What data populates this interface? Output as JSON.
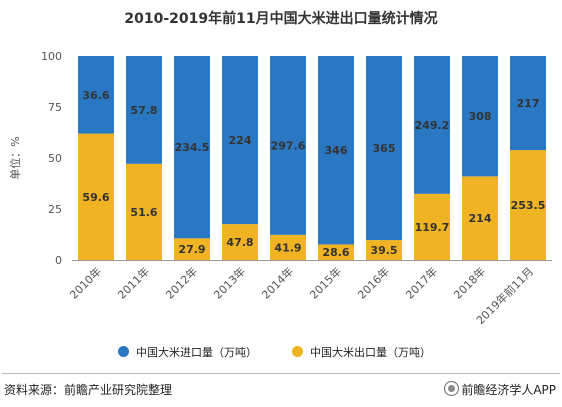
{
  "colors": {
    "import": "#2a78c3",
    "export": "#f0b323",
    "axis": "#555555",
    "label": "#333333"
  },
  "footer": {
    "source": "资料来源：前瞻产业研究院整理",
    "brand": "前瞻经济学人APP",
    "brand_icon": "circle-logo-icon"
  },
  "chart_data": {
    "type": "bar",
    "stacked": true,
    "normalized": true,
    "title": "2010-2019年前11月中国大米进出口量统计情况",
    "ylabel": "单位：%",
    "ylim": [
      0,
      100
    ],
    "yticks": [
      "0",
      "25",
      "50",
      "75",
      "100"
    ],
    "grid": false,
    "legend_position": "bottom",
    "categories": [
      "2010年",
      "2011年",
      "2012年",
      "2013年",
      "2014年",
      "2015年",
      "2016年",
      "2017年",
      "2018年",
      "2019年前11月"
    ],
    "series": [
      {
        "name": "中国大米出口量（万吨）",
        "values": [
          59.6,
          51.6,
          27.9,
          47.8,
          41.9,
          28.6,
          39.5,
          119.7,
          214,
          253.5
        ],
        "labels": [
          "59.6",
          "51.6",
          "27.9",
          "47.8",
          "41.9",
          "28.6",
          "39.5",
          "119.7",
          "214",
          "253.5"
        ]
      },
      {
        "name": "中国大米进口量（万吨）",
        "values": [
          36.6,
          57.8,
          234.5,
          224,
          297.6,
          346,
          365,
          249.2,
          308,
          217
        ],
        "labels": [
          "36.6",
          "57.8",
          "234.5",
          "224",
          "297.6",
          "346",
          "365",
          "249.2",
          "308",
          "217"
        ]
      }
    ]
  }
}
